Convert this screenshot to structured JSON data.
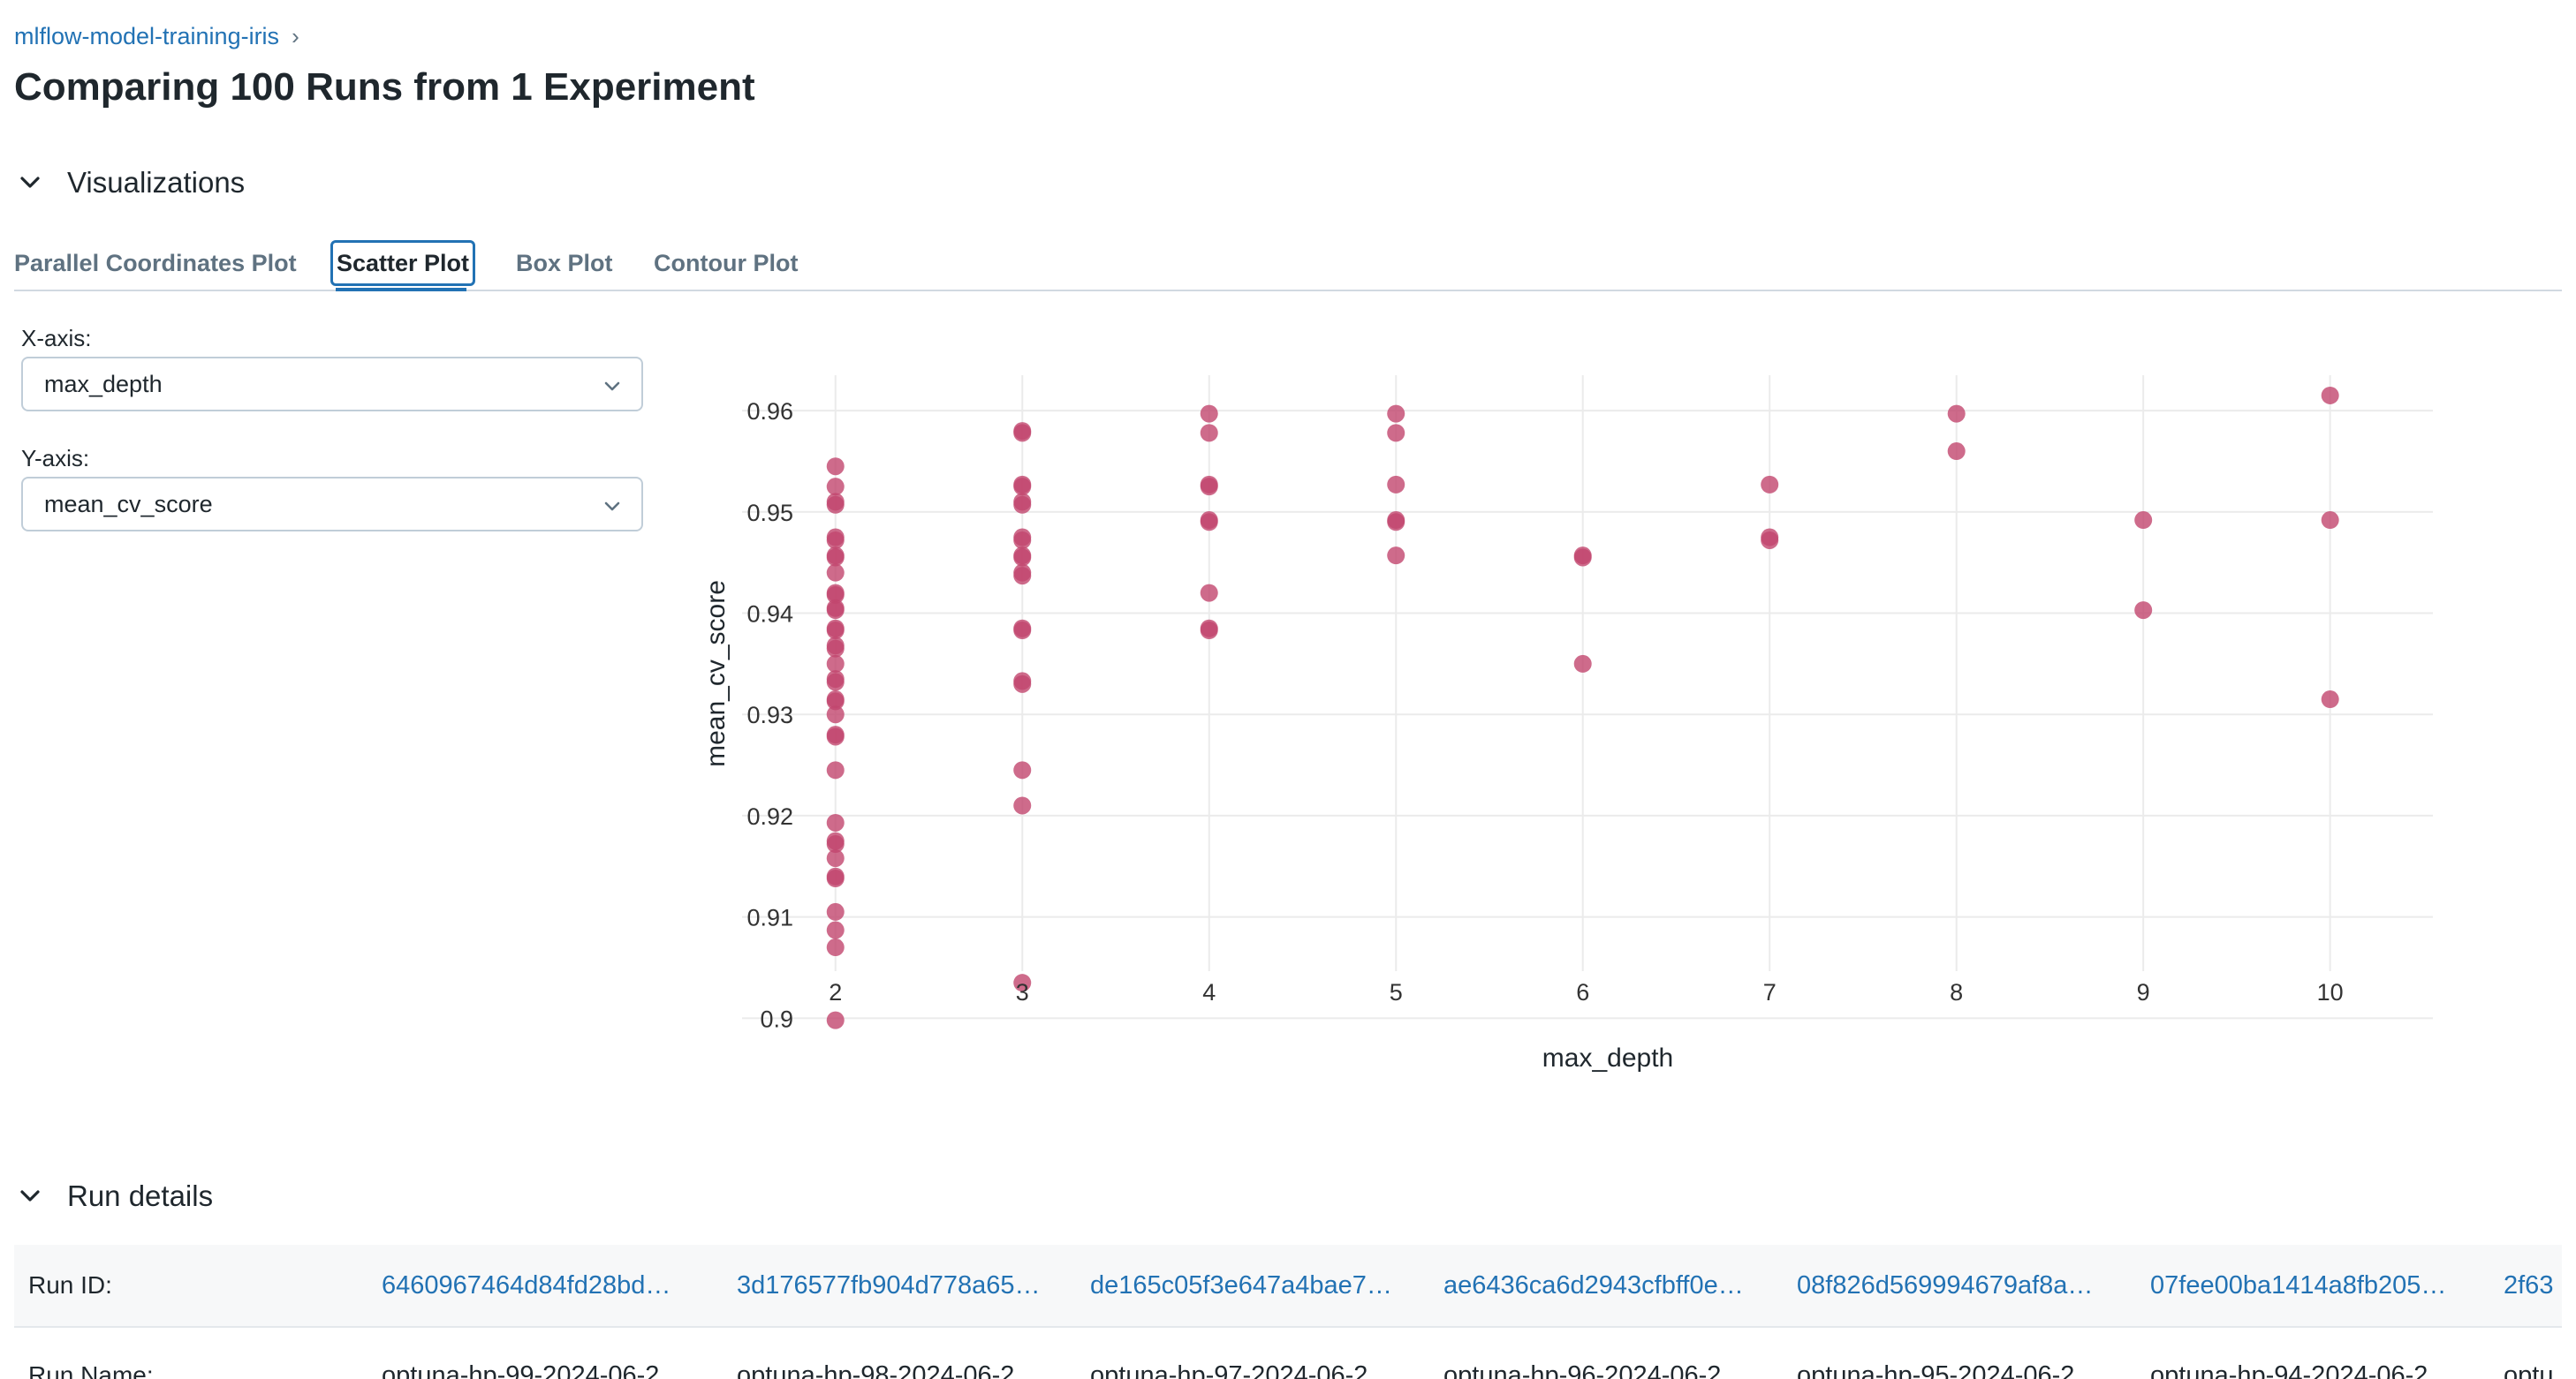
{
  "breadcrumb": {
    "experiment": "mlflow-model-training-iris",
    "separator": "›"
  },
  "page": {
    "title": "Comparing 100 Runs from 1 Experiment"
  },
  "sections": {
    "visualizations": "Visualizations",
    "run_details": "Run details"
  },
  "tabs": [
    {
      "label": "Parallel Coordinates Plot",
      "active": false
    },
    {
      "label": "Scatter Plot",
      "active": true
    },
    {
      "label": "Box Plot",
      "active": false
    },
    {
      "label": "Contour Plot",
      "active": false
    }
  ],
  "controls": {
    "x_axis_label": "X-axis:",
    "x_axis_value": "max_depth",
    "y_axis_label": "Y-axis:",
    "y_axis_value": "mean_cv_score"
  },
  "colors": {
    "accent": "#2272b4",
    "marker": "#c2466e",
    "text": "#1f272d",
    "muted": "#5f7281"
  },
  "chart_data": {
    "type": "scatter",
    "xlabel": "max_depth",
    "ylabel": "mean_cv_score",
    "x_ticks": [
      "2",
      "3",
      "4",
      "5",
      "6",
      "7",
      "8",
      "9",
      "10"
    ],
    "y_ticks": [
      "0.9",
      "0.91",
      "0.92",
      "0.93",
      "0.94",
      "0.95",
      "0.96"
    ],
    "xlim": [
      1.5,
      10.55
    ],
    "ylim": [
      0.8975,
      0.9635
    ],
    "grid": true,
    "points": [
      [
        2,
        0.9545
      ],
      [
        2,
        0.9525
      ],
      [
        2,
        0.951
      ],
      [
        2,
        0.9507
      ],
      [
        2,
        0.9475
      ],
      [
        2,
        0.9472
      ],
      [
        2,
        0.9457
      ],
      [
        2,
        0.9455
      ],
      [
        2,
        0.944
      ],
      [
        2,
        0.942
      ],
      [
        2,
        0.9418
      ],
      [
        2,
        0.9405
      ],
      [
        2,
        0.9403
      ],
      [
        2,
        0.9385
      ],
      [
        2,
        0.9383
      ],
      [
        2,
        0.9368
      ],
      [
        2,
        0.9365
      ],
      [
        2,
        0.935
      ],
      [
        2,
        0.9335
      ],
      [
        2,
        0.9332
      ],
      [
        2,
        0.9315
      ],
      [
        2,
        0.9313
      ],
      [
        2,
        0.93
      ],
      [
        2,
        0.928
      ],
      [
        2,
        0.9278
      ],
      [
        2,
        0.9245
      ],
      [
        2,
        0.9193
      ],
      [
        2,
        0.9175
      ],
      [
        2,
        0.9172
      ],
      [
        2,
        0.9158
      ],
      [
        2,
        0.914
      ],
      [
        2,
        0.9138
      ],
      [
        2,
        0.9105
      ],
      [
        2,
        0.9087
      ],
      [
        2,
        0.907
      ],
      [
        2,
        0.8998
      ],
      [
        3,
        0.958
      ],
      [
        3,
        0.9578
      ],
      [
        3,
        0.9527
      ],
      [
        3,
        0.9525
      ],
      [
        3,
        0.951
      ],
      [
        3,
        0.9507
      ],
      [
        3,
        0.9475
      ],
      [
        3,
        0.9472
      ],
      [
        3,
        0.9457
      ],
      [
        3,
        0.9455
      ],
      [
        3,
        0.944
      ],
      [
        3,
        0.9437
      ],
      [
        3,
        0.9385
      ],
      [
        3,
        0.9383
      ],
      [
        3,
        0.9333
      ],
      [
        3,
        0.933
      ],
      [
        3,
        0.9245
      ],
      [
        3,
        0.921
      ],
      [
        3,
        0.9035
      ],
      [
        4,
        0.9597
      ],
      [
        4,
        0.9578
      ],
      [
        4,
        0.9527
      ],
      [
        4,
        0.9525
      ],
      [
        4,
        0.9492
      ],
      [
        4,
        0.949
      ],
      [
        4,
        0.942
      ],
      [
        4,
        0.9385
      ],
      [
        4,
        0.9383
      ],
      [
        5,
        0.9597
      ],
      [
        5,
        0.9578
      ],
      [
        5,
        0.9527
      ],
      [
        5,
        0.9492
      ],
      [
        5,
        0.949
      ],
      [
        5,
        0.9457
      ],
      [
        6,
        0.9457
      ],
      [
        6,
        0.9455
      ],
      [
        6,
        0.935
      ],
      [
        7,
        0.9527
      ],
      [
        7,
        0.9475
      ],
      [
        7,
        0.9472
      ],
      [
        8,
        0.9597
      ],
      [
        8,
        0.956
      ],
      [
        9,
        0.9492
      ],
      [
        9,
        0.9403
      ],
      [
        10,
        0.9615
      ],
      [
        10,
        0.9492
      ],
      [
        10,
        0.9315
      ]
    ]
  },
  "run_details": {
    "row_labels": {
      "run_id": "Run ID:",
      "run_name": "Run Name:"
    },
    "run_ids": [
      "6460967464d84fd28bd…",
      "3d176577fb904d778a65…",
      "de165c05f3e647a4bae7…",
      "ae6436ca6d2943cfbff0e…",
      "08f826d569994679af8a…",
      "07fee00ba1414a8fb205…",
      "2f63"
    ],
    "run_names": [
      "optuna-hp-99-2024-06-2…",
      "optuna-hp-98-2024-06-2…",
      "optuna-hp-97-2024-06-2…",
      "optuna-hp-96-2024-06-2…",
      "optuna-hp-95-2024-06-2…",
      "optuna-hp-94-2024-06-2…",
      "optu"
    ]
  }
}
